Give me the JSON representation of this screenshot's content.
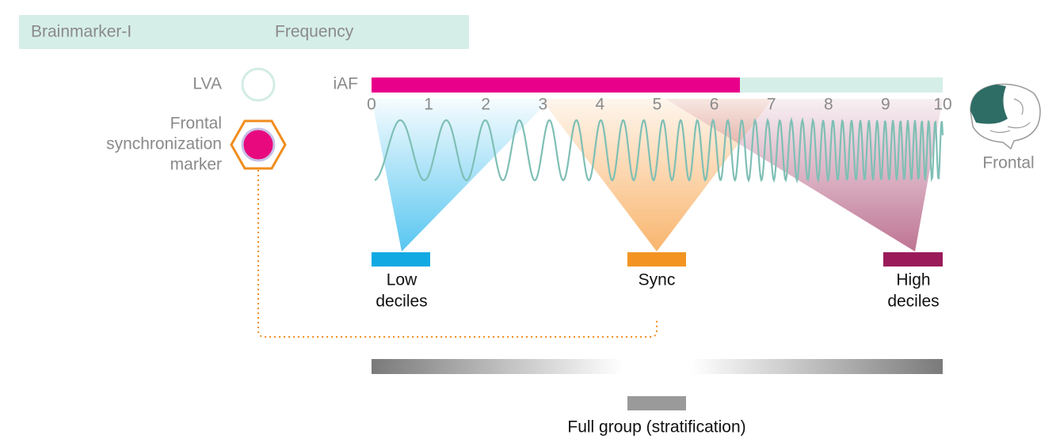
{
  "header": {
    "title": "Brainmarker-I",
    "column": "Frequency"
  },
  "markers": [
    {
      "label": [
        "LVA"
      ]
    },
    {
      "label": [
        "Frontal",
        "synchronization",
        "marker"
      ]
    }
  ],
  "frequency_axis": {
    "label": "iAF",
    "ticks": [
      0,
      1,
      2,
      3,
      4,
      5,
      6,
      7,
      8,
      9,
      10
    ]
  },
  "region_label": "Frontal",
  "groups": [
    {
      "label": [
        "Low",
        "deciles"
      ]
    },
    {
      "label": [
        "Sync"
      ]
    },
    {
      "label": [
        "High",
        "deciles"
      ]
    }
  ],
  "full_group": "Full group (stratification)"
}
